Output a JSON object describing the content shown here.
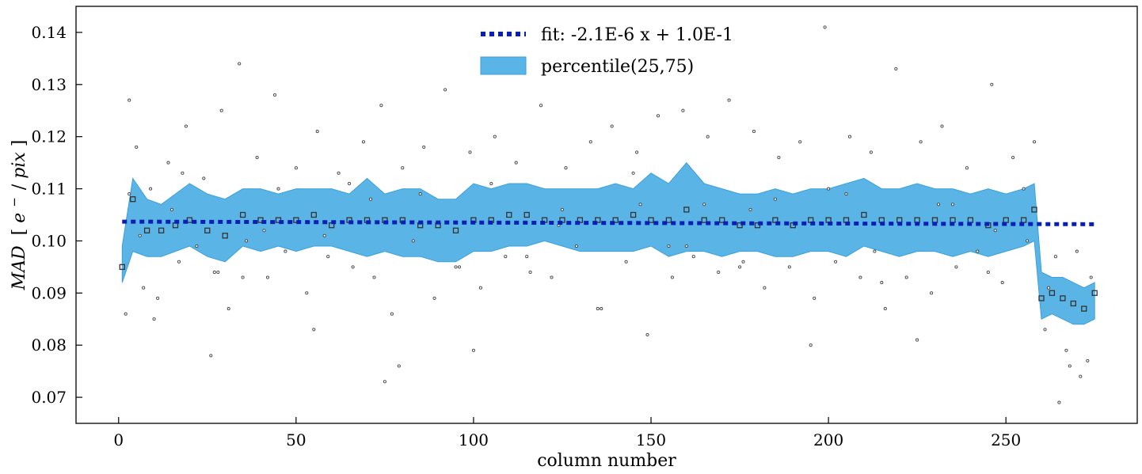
{
  "chart_data": {
    "type": "scatter",
    "title": "",
    "xlabel": "column number",
    "ylabel": {
      "main": "MAD",
      "unit_open": "[",
      "unit_e": "e",
      "unit_sup": "−",
      "unit_rest": "/",
      "unit_pix": "pix",
      "unit_close": "]"
    },
    "xlim": [
      -12,
      287
    ],
    "ylim": [
      0.065,
      0.145
    ],
    "xticks": [
      0,
      50,
      100,
      150,
      200,
      250
    ],
    "xtick_labels": [
      "0",
      "50",
      "100",
      "150",
      "200",
      "250"
    ],
    "yticks": [
      0.07,
      0.08,
      0.09,
      0.1,
      0.11,
      0.12,
      0.13,
      0.14
    ],
    "ytick_labels": [
      "0.07",
      "0.08",
      "0.09",
      "0.10",
      "0.11",
      "0.12",
      "0.13",
      "0.14"
    ],
    "grid": false,
    "legend": {
      "placement": "top-center",
      "entries": [
        {
          "label": "fit: -2.1E-6 x + 1.0E-1",
          "kind": "line"
        },
        {
          "label": "percentile(25,75)",
          "kind": "patch"
        }
      ]
    },
    "colors": {
      "fit_line": "#0a1fb4",
      "band_fill": "#5ab4e6",
      "band_edge": "#3ca0dc",
      "points": "#444444",
      "medians": "#333333"
    },
    "series": [
      {
        "name": "fit: -2.1E-6 x + 1.0E-1",
        "kind": "fit_line",
        "x": [
          1,
          275
        ],
        "y": [
          0.1037,
          0.1032
        ]
      },
      {
        "name": "percentile(25,75)",
        "kind": "band",
        "x": [
          1,
          4,
          8,
          12,
          16,
          20,
          25,
          30,
          35,
          40,
          45,
          50,
          55,
          60,
          65,
          70,
          75,
          80,
          85,
          90,
          95,
          100,
          105,
          110,
          115,
          120,
          125,
          130,
          135,
          140,
          145,
          150,
          155,
          160,
          165,
          170,
          175,
          180,
          185,
          190,
          195,
          200,
          205,
          210,
          215,
          220,
          225,
          230,
          235,
          240,
          245,
          250,
          255,
          258,
          260,
          263,
          266,
          269,
          272,
          275
        ],
        "lower": [
          0.092,
          0.098,
          0.097,
          0.097,
          0.098,
          0.099,
          0.097,
          0.096,
          0.099,
          0.098,
          0.099,
          0.098,
          0.099,
          0.099,
          0.098,
          0.097,
          0.098,
          0.097,
          0.097,
          0.096,
          0.096,
          0.098,
          0.098,
          0.099,
          0.099,
          0.1,
          0.099,
          0.098,
          0.098,
          0.098,
          0.098,
          0.099,
          0.097,
          0.098,
          0.098,
          0.097,
          0.098,
          0.098,
          0.097,
          0.097,
          0.098,
          0.098,
          0.097,
          0.099,
          0.098,
          0.097,
          0.098,
          0.098,
          0.097,
          0.098,
          0.097,
          0.098,
          0.099,
          0.1,
          0.085,
          0.086,
          0.085,
          0.084,
          0.084,
          0.085
        ],
        "upper": [
          0.099,
          0.112,
          0.108,
          0.107,
          0.109,
          0.111,
          0.109,
          0.108,
          0.11,
          0.11,
          0.109,
          0.11,
          0.11,
          0.11,
          0.109,
          0.112,
          0.109,
          0.11,
          0.11,
          0.108,
          0.108,
          0.111,
          0.11,
          0.111,
          0.111,
          0.11,
          0.11,
          0.11,
          0.11,
          0.111,
          0.11,
          0.113,
          0.111,
          0.115,
          0.111,
          0.11,
          0.109,
          0.109,
          0.11,
          0.109,
          0.11,
          0.11,
          0.111,
          0.112,
          0.11,
          0.11,
          0.111,
          0.11,
          0.11,
          0.109,
          0.11,
          0.109,
          0.11,
          0.111,
          0.094,
          0.093,
          0.093,
          0.092,
          0.091,
          0.092
        ]
      },
      {
        "name": "",
        "kind": "medians",
        "x": [
          1,
          4,
          8,
          12,
          16,
          20,
          25,
          30,
          35,
          40,
          45,
          50,
          55,
          60,
          65,
          70,
          75,
          80,
          85,
          90,
          95,
          100,
          105,
          110,
          115,
          120,
          125,
          130,
          135,
          140,
          145,
          150,
          155,
          160,
          165,
          170,
          175,
          180,
          185,
          190,
          195,
          200,
          205,
          210,
          215,
          220,
          225,
          230,
          235,
          240,
          245,
          250,
          255,
          258,
          260,
          263,
          266,
          269,
          272,
          275
        ],
        "y": [
          0.095,
          0.108,
          0.102,
          0.102,
          0.103,
          0.104,
          0.102,
          0.101,
          0.105,
          0.104,
          0.104,
          0.104,
          0.105,
          0.103,
          0.104,
          0.104,
          0.104,
          0.104,
          0.103,
          0.103,
          0.102,
          0.104,
          0.104,
          0.105,
          0.105,
          0.104,
          0.104,
          0.104,
          0.104,
          0.104,
          0.105,
          0.104,
          0.104,
          0.106,
          0.104,
          0.104,
          0.103,
          0.103,
          0.104,
          0.103,
          0.104,
          0.104,
          0.104,
          0.105,
          0.104,
          0.104,
          0.104,
          0.104,
          0.104,
          0.104,
          0.103,
          0.104,
          0.104,
          0.106,
          0.089,
          0.09,
          0.089,
          0.088,
          0.087,
          0.09
        ]
      },
      {
        "name": "",
        "kind": "points",
        "x": [
          2,
          3,
          5,
          7,
          9,
          11,
          14,
          17,
          19,
          22,
          24,
          27,
          29,
          31,
          34,
          36,
          39,
          42,
          44,
          47,
          50,
          53,
          56,
          59,
          62,
          66,
          69,
          72,
          74,
          77,
          80,
          83,
          86,
          89,
          92,
          96,
          99,
          102,
          106,
          109,
          112,
          116,
          119,
          122,
          126,
          129,
          133,
          136,
          139,
          143,
          146,
          149,
          152,
          156,
          159,
          162,
          166,
          169,
          172,
          176,
          179,
          182,
          186,
          189,
          192,
          196,
          199,
          202,
          206,
          209,
          212,
          216,
          219,
          222,
          226,
          229,
          232,
          236,
          239,
          242,
          246,
          249,
          252,
          256,
          258,
          261,
          264,
          267,
          270,
          273,
          3,
          10,
          18,
          26,
          35,
          45,
          55,
          65,
          75,
          85,
          95,
          105,
          115,
          125,
          135,
          145,
          155,
          165,
          175,
          185,
          195,
          205,
          215,
          225,
          235,
          245,
          255,
          262,
          268,
          274,
          6,
          15,
          28,
          41,
          58,
          71,
          79,
          100,
          124,
          147,
          160,
          178,
          200,
          213,
          231,
          247,
          265,
          271
        ],
        "y": [
          0.086,
          0.127,
          0.118,
          0.091,
          0.11,
          0.089,
          0.115,
          0.096,
          0.122,
          0.099,
          0.112,
          0.094,
          0.125,
          0.087,
          0.134,
          0.1,
          0.116,
          0.093,
          0.128,
          0.098,
          0.114,
          0.09,
          0.121,
          0.097,
          0.113,
          0.095,
          0.119,
          0.093,
          0.126,
          0.086,
          0.114,
          0.1,
          0.118,
          0.089,
          0.129,
          0.095,
          0.117,
          0.091,
          0.12,
          0.097,
          0.115,
          0.094,
          0.126,
          0.093,
          0.114,
          0.099,
          0.119,
          0.087,
          0.122,
          0.096,
          0.117,
          0.082,
          0.124,
          0.093,
          0.125,
          0.097,
          0.12,
          0.094,
          0.127,
          0.096,
          0.121,
          0.091,
          0.116,
          0.095,
          0.119,
          0.089,
          0.141,
          0.096,
          0.12,
          0.093,
          0.117,
          0.087,
          0.133,
          0.093,
          0.119,
          0.09,
          0.122,
          0.095,
          0.114,
          0.098,
          0.13,
          0.092,
          0.116,
          0.1,
          0.119,
          0.083,
          0.097,
          0.079,
          0.098,
          0.077,
          0.109,
          0.085,
          0.113,
          0.078,
          0.093,
          0.11,
          0.083,
          0.111,
          0.073,
          0.109,
          0.095,
          0.111,
          0.097,
          0.106,
          0.087,
          0.113,
          0.099,
          0.107,
          0.095,
          0.108,
          0.08,
          0.109,
          0.092,
          0.081,
          0.107,
          0.094,
          0.11,
          0.091,
          0.076,
          0.093,
          0.101,
          0.106,
          0.094,
          0.102,
          0.101,
          0.108,
          0.076,
          0.079,
          0.103,
          0.107,
          0.099,
          0.106,
          0.11,
          0.098,
          0.107,
          0.102,
          0.069,
          0.074
        ]
      }
    ]
  }
}
